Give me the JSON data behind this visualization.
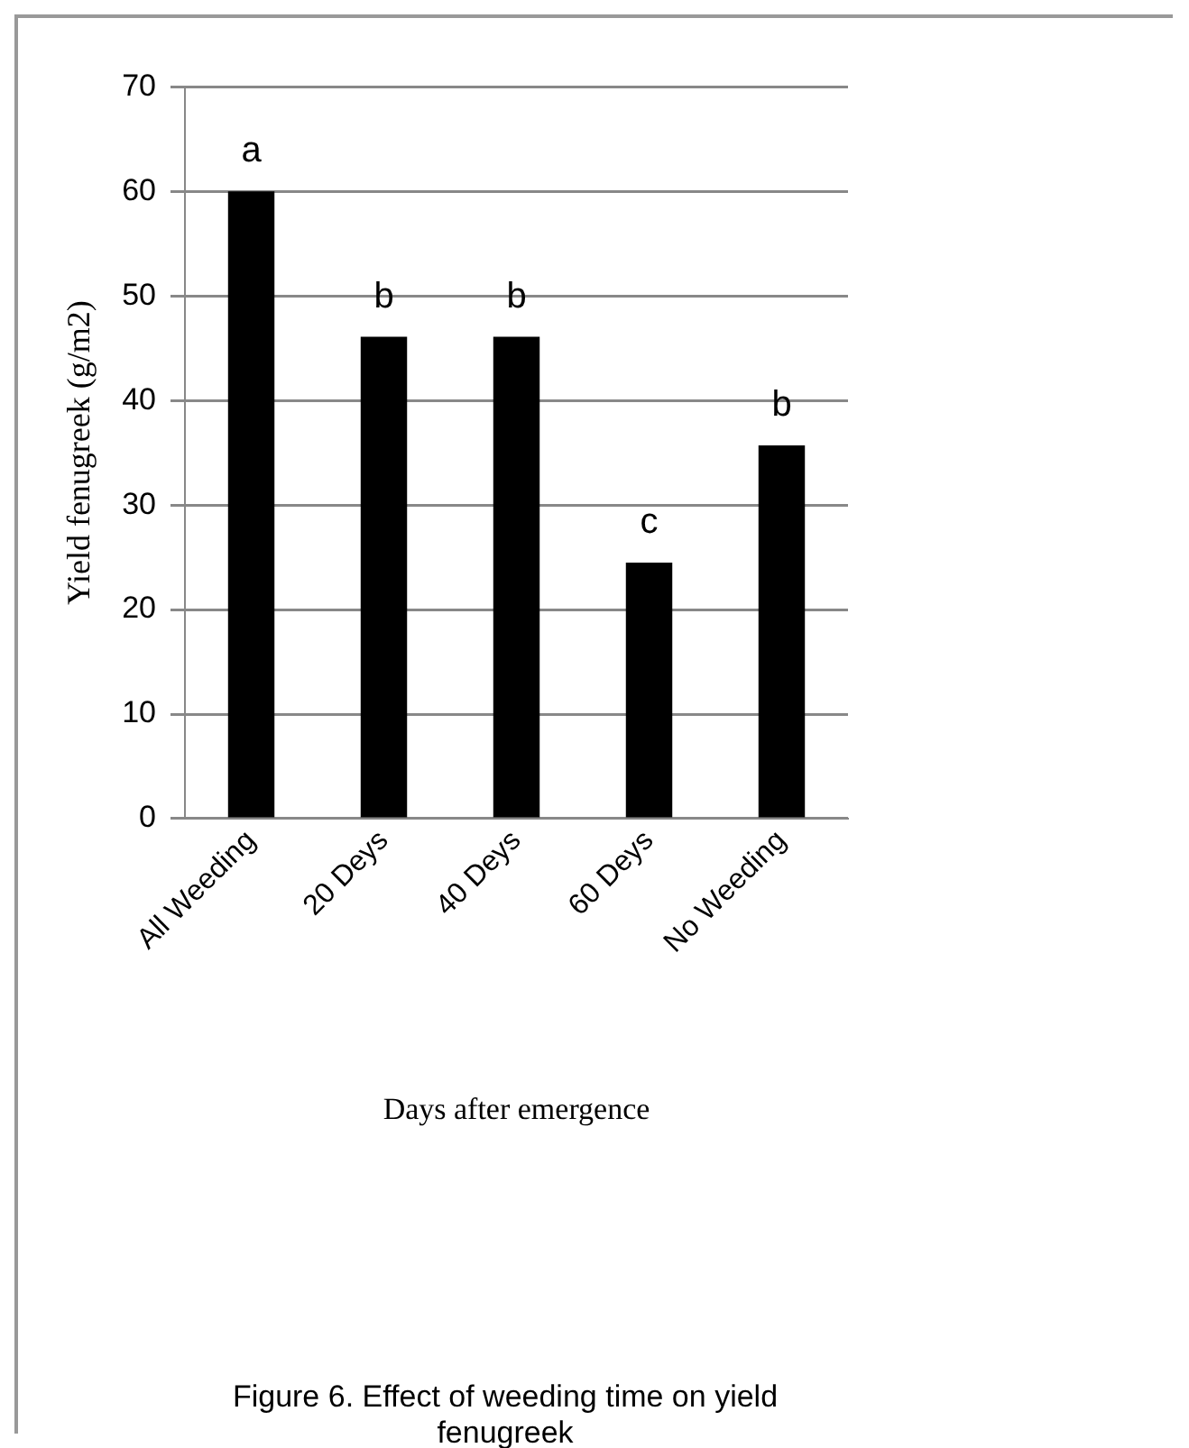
{
  "chart_data": {
    "type": "bar",
    "xlabel": "Days after emergence",
    "ylabel": "Yield fenugreek (g/m2)",
    "categories": [
      "All Weeding",
      "20 Deys",
      "40 Deys",
      "60 Deys",
      "No Weeding"
    ],
    "values": [
      60,
      46.1,
      46.1,
      24.5,
      35.7
    ],
    "color": "#000000",
    "ylim": [
      0,
      70
    ],
    "yticks": [
      0,
      10,
      20,
      30,
      40,
      50,
      60,
      70
    ],
    "grid": "y",
    "legend": false,
    "value_labels": [
      "a",
      "b",
      "b",
      "c",
      "b"
    ],
    "annotations": [
      "Figure 6. Effect of weeding time on yield fenugreek"
    ]
  }
}
